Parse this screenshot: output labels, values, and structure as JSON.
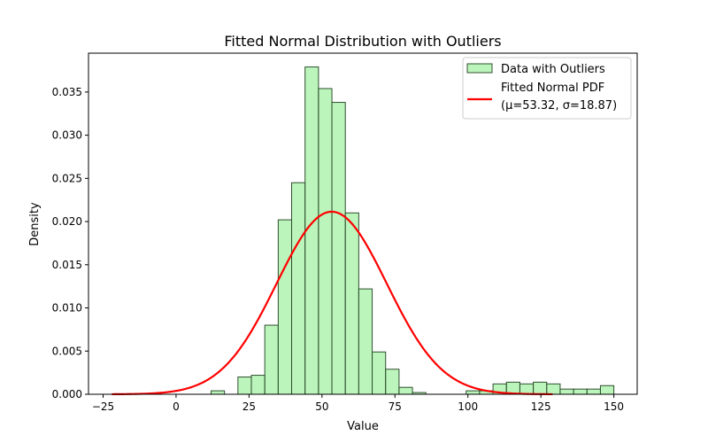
{
  "chart_data": {
    "type": "bar",
    "title": "Fitted Normal Distribution with Outliers",
    "xlabel": "Value",
    "ylabel": "Density",
    "xlim": [
      -30,
      158
    ],
    "ylim": [
      0,
      0.0395
    ],
    "xticks": [
      -25,
      0,
      25,
      50,
      75,
      100,
      125,
      150
    ],
    "xtick_labels": [
      "−25",
      "0",
      "25",
      "50",
      "75",
      "100",
      "125",
      "150"
    ],
    "yticks": [
      0,
      0.005,
      0.01,
      0.015,
      0.02,
      0.025,
      0.03,
      0.035
    ],
    "ytick_labels": [
      "0.000",
      "0.005",
      "0.010",
      "0.015",
      "0.020",
      "0.025",
      "0.030",
      "0.035"
    ],
    "grid": false,
    "legend_position": "top-right",
    "histogram": {
      "name": "Data with Outliers",
      "color": "#90ee90",
      "edge_color": "#2f4f2f",
      "bin_width": 4.6,
      "bin_lefts": [
        12.0,
        21.2,
        25.8,
        30.4,
        35.0,
        39.6,
        44.2,
        48.8,
        53.4,
        58.0,
        62.6,
        67.2,
        71.8,
        76.4,
        81.0,
        99.4,
        104.0,
        108.6,
        113.2,
        117.8,
        122.4,
        127.0,
        131.6,
        136.2,
        140.8,
        145.4
      ],
      "densities": [
        0.0004,
        0.002,
        0.0022,
        0.008,
        0.0202,
        0.0245,
        0.0379,
        0.0354,
        0.0338,
        0.021,
        0.0122,
        0.0049,
        0.0029,
        0.0008,
        0.0002,
        0.0004,
        0.0004,
        0.0012,
        0.0014,
        0.0012,
        0.0014,
        0.0012,
        0.0006,
        0.0006,
        0.0006,
        0.001
      ]
    },
    "fitted_curve": {
      "name": "Fitted Normal PDF",
      "label_line2": "(μ=53.32, σ=18.87)",
      "mu": 53.32,
      "sigma": 18.87,
      "x_range": [
        -22,
        129
      ],
      "color": "#ff0000"
    }
  }
}
